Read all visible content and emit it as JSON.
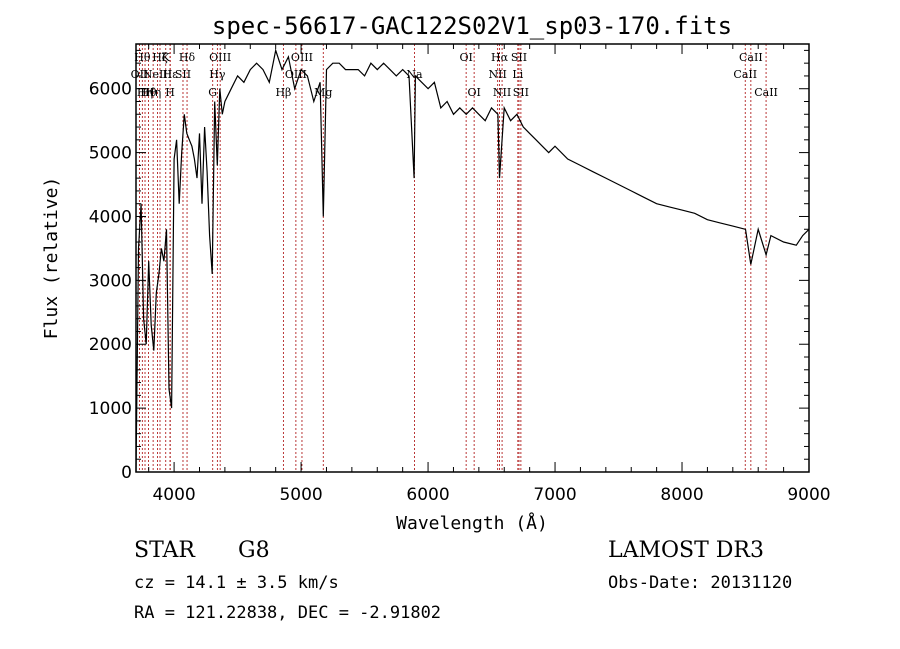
{
  "chart_data": {
    "type": "line",
    "title": "spec-56617-GAC122S02V1_sp03-170.fits",
    "xlabel": "Wavelength (Å)",
    "ylabel": "Flux (relative)",
    "xlim": [
      3700,
      9000
    ],
    "ylim": [
      0,
      6700
    ],
    "xticks": [
      4000,
      5000,
      6000,
      7000,
      8000,
      9000
    ],
    "yticks": [
      0,
      1000,
      2000,
      3000,
      4000,
      5000,
      6000
    ],
    "grid": false,
    "series": [
      {
        "name": "spectrum",
        "x": [
          3700,
          3720,
          3740,
          3760,
          3780,
          3800,
          3820,
          3840,
          3860,
          3880,
          3900,
          3920,
          3940,
          3960,
          3980,
          4000,
          4020,
          4040,
          4060,
          4080,
          4100,
          4120,
          4140,
          4160,
          4180,
          4200,
          4220,
          4240,
          4260,
          4280,
          4300,
          4320,
          4340,
          4360,
          4380,
          4400,
          4450,
          4500,
          4550,
          4600,
          4650,
          4700,
          4750,
          4800,
          4850,
          4900,
          4950,
          5000,
          5050,
          5100,
          5150,
          5175,
          5200,
          5250,
          5300,
          5350,
          5400,
          5450,
          5500,
          5550,
          5600,
          5650,
          5700,
          5750,
          5800,
          5850,
          5890,
          5900,
          5950,
          6000,
          6050,
          6100,
          6150,
          6200,
          6250,
          6300,
          6350,
          6400,
          6450,
          6500,
          6550,
          6563,
          6600,
          6650,
          6700,
          6750,
          6800,
          6850,
          6900,
          6950,
          7000,
          7100,
          7200,
          7300,
          7400,
          7500,
          7600,
          7700,
          7800,
          7900,
          8000,
          8100,
          8200,
          8300,
          8400,
          8500,
          8542,
          8600,
          8662,
          8700,
          8800,
          8900,
          8950,
          9000
        ],
        "values": [
          0,
          3500,
          4200,
          2400,
          2000,
          3300,
          2300,
          1900,
          2800,
          3100,
          3500,
          3300,
          3800,
          1300,
          1000,
          4900,
          5200,
          4200,
          5000,
          5600,
          5300,
          5200,
          5100,
          4900,
          4600,
          5300,
          4200,
          5400,
          4700,
          3700,
          3100,
          5800,
          4800,
          6000,
          5600,
          5800,
          6000,
          6200,
          6100,
          6300,
          6400,
          6300,
          6100,
          6600,
          6300,
          6500,
          6000,
          6300,
          6200,
          5800,
          6100,
          4000,
          6300,
          6400,
          6400,
          6300,
          6300,
          6300,
          6200,
          6400,
          6300,
          6400,
          6300,
          6200,
          6300,
          6200,
          4600,
          6200,
          6100,
          6000,
          6100,
          5700,
          5800,
          5600,
          5700,
          5600,
          5700,
          5600,
          5500,
          5700,
          5600,
          4600,
          5700,
          5500,
          5600,
          5400,
          5300,
          5200,
          5100,
          5000,
          5100,
          4900,
          4800,
          4700,
          4600,
          4500,
          4400,
          4300,
          4200,
          4150,
          4100,
          4050,
          3950,
          3900,
          3850,
          3800,
          3250,
          3800,
          3400,
          3700,
          3600,
          3550,
          3700,
          3800
        ]
      }
    ],
    "lines": [
      {
        "wavelength": 3727,
        "label": "OII",
        "row": 1
      },
      {
        "wavelength": 3750,
        "label": "Hθ",
        "row": 0
      },
      {
        "wavelength": 3771,
        "label": "Hη",
        "row": 2
      },
      {
        "wavelength": 3798,
        "label": "Hθ",
        "row": 2
      },
      {
        "wavelength": 3835,
        "label": "Hη",
        "row": 2
      },
      {
        "wavelength": 3869,
        "label": "NeIII",
        "row": 1
      },
      {
        "wavelength": 3889,
        "label": "Hζ",
        "row": 0
      },
      {
        "wavelength": 3934,
        "label": "K",
        "row": 0
      },
      {
        "wavelength": 3968,
        "label": "H",
        "row": 2
      },
      {
        "wavelength": 3970,
        "label": "Hε",
        "row": 1
      },
      {
        "wavelength": 4070,
        "label": "SII",
        "row": 1
      },
      {
        "wavelength": 4102,
        "label": "Hδ",
        "row": 0
      },
      {
        "wavelength": 4304,
        "label": "G",
        "row": 2
      },
      {
        "wavelength": 4341,
        "label": "Hγ",
        "row": 1
      },
      {
        "wavelength": 4363,
        "label": "OIII",
        "row": 0
      },
      {
        "wavelength": 4861,
        "label": "Hβ",
        "row": 2
      },
      {
        "wavelength": 4959,
        "label": "OIII",
        "row": 1
      },
      {
        "wavelength": 5007,
        "label": "OIII",
        "row": 0
      },
      {
        "wavelength": 5175,
        "label": "Mg",
        "row": 2
      },
      {
        "wavelength": 5893,
        "label": "Na",
        "row": 1
      },
      {
        "wavelength": 6300,
        "label": "OI",
        "row": 0
      },
      {
        "wavelength": 6363,
        "label": "OI",
        "row": 2
      },
      {
        "wavelength": 6548,
        "label": "NII",
        "row": 1
      },
      {
        "wavelength": 6563,
        "label": "Hα",
        "row": 0
      },
      {
        "wavelength": 6583,
        "label": "NII",
        "row": 2
      },
      {
        "wavelength": 6707,
        "label": "Li",
        "row": 1
      },
      {
        "wavelength": 6716,
        "label": "SII",
        "row": 0
      },
      {
        "wavelength": 6731,
        "label": "SII",
        "row": 2
      },
      {
        "wavelength": 8498,
        "label": "CaII",
        "row": 1
      },
      {
        "wavelength": 8542,
        "label": "CaII",
        "row": 0
      },
      {
        "wavelength": 8662,
        "label": "CaII",
        "row": 2
      }
    ]
  },
  "info": {
    "object_class": "STAR",
    "subclass": "G8",
    "survey": "LAMOST DR3",
    "redshift_text": "cz = 14.1 ± 3.5 km/s",
    "obs_date_text": "Obs-Date: 20131120",
    "coords_text": "RA = 121.22838, DEC =  -2.91802"
  },
  "colors": {
    "spectrum": "#000000",
    "line_marker": "#b22222",
    "axis": "#000000"
  }
}
